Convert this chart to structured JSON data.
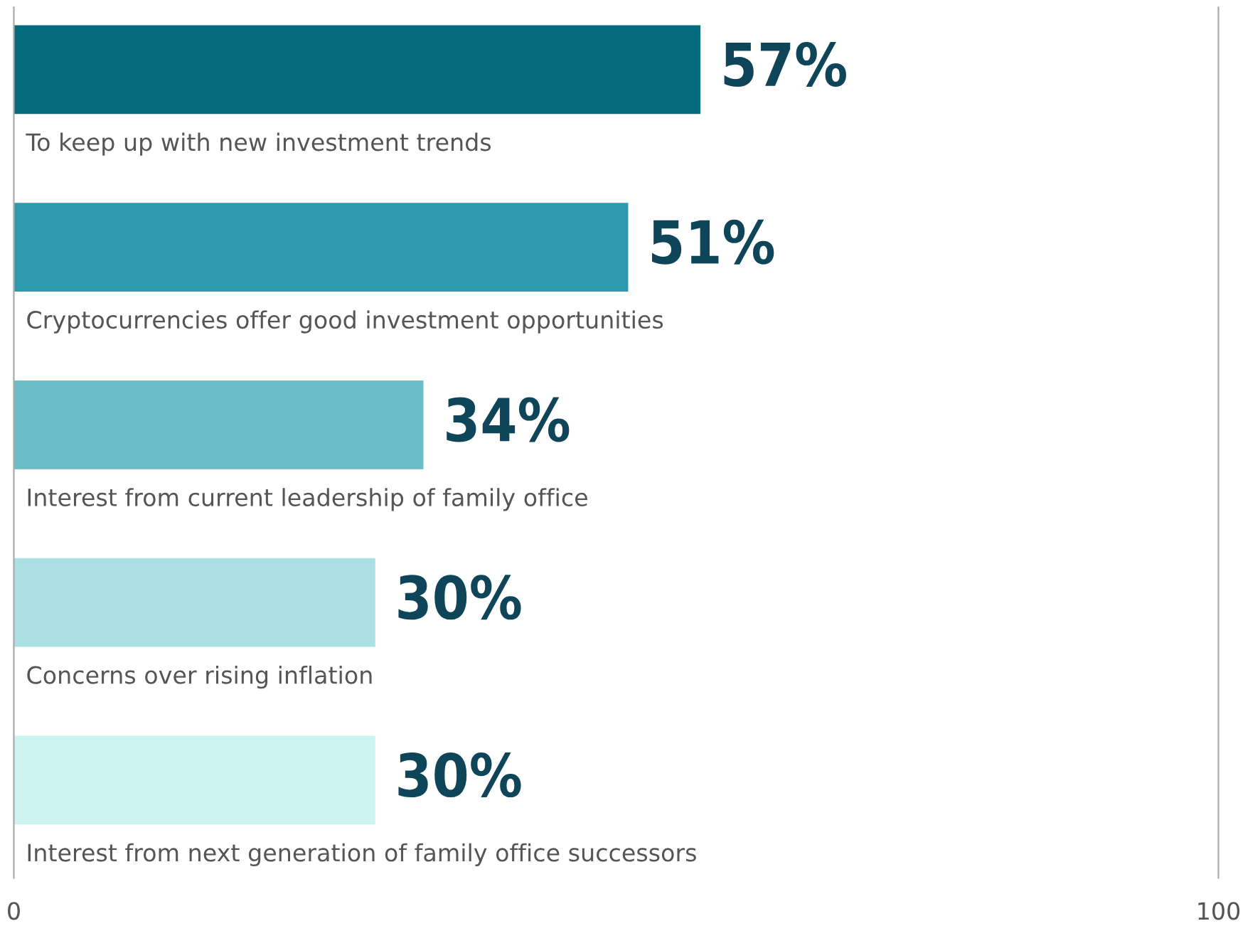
{
  "chart_data": {
    "type": "bar",
    "orientation": "horizontal",
    "categories": [
      "To keep up with new investment trends",
      "Cryptocurrencies offer good investment opportunities",
      "Interest from current leadership of family office",
      "Concerns over rising inflation",
      "Interest from next generation of family office successors"
    ],
    "values": [
      57,
      51,
      34,
      30,
      30
    ],
    "colors": [
      "#046a7e",
      "#2e9aae",
      "#6bbdc7",
      "#abe0e5",
      "#cef3f3"
    ],
    "value_labels": [
      "57%",
      "51%",
      "34%",
      "30%",
      "30%"
    ],
    "xlim": [
      0,
      100
    ],
    "xticks": [
      0,
      100
    ],
    "grid": false,
    "legend": false
  }
}
